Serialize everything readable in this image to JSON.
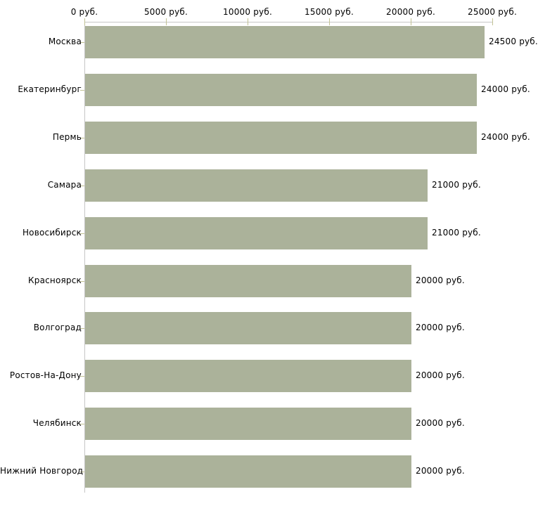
{
  "chart_data": {
    "type": "bar",
    "orientation": "horizontal",
    "title": "",
    "xlabel": "",
    "ylabel": "",
    "unit": "руб.",
    "categories": [
      "Москва",
      "Екатеринбург",
      "Пермь",
      "Самара",
      "Новосибирск",
      "Красноярск",
      "Волгоград",
      "Ростов-На-Дону",
      "Челябинск",
      "Нижний Новгород"
    ],
    "values": [
      24500,
      24000,
      24000,
      21000,
      21000,
      20000,
      20000,
      20000,
      20000,
      20000
    ],
    "value_labels": [
      "24500 руб.",
      "24000 руб.",
      "24000 руб.",
      "21000 руб.",
      "21000 руб.",
      "20000 руб.",
      "20000 руб.",
      "20000 руб.",
      "20000 руб.",
      "20000 руб."
    ],
    "x_axis": {
      "position": "top",
      "range": [
        0,
        25000
      ],
      "ticks": [
        0,
        5000,
        10000,
        15000,
        20000,
        25000
      ],
      "tick_labels": [
        "0 руб.",
        "5000 руб.",
        "10000 руб.",
        "15000 руб.",
        "20000 руб.",
        "25000 руб."
      ]
    },
    "legend": null,
    "grid": false,
    "colors": {
      "bar": "#abb29a",
      "axis_line": "#c6c6c6",
      "tick_mark": "#c2c295",
      "text": "#000000",
      "background": "#ffffff"
    }
  }
}
